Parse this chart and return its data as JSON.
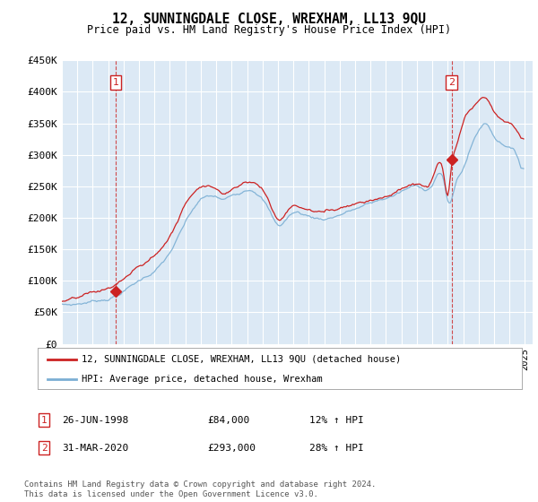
{
  "title": "12, SUNNINGDALE CLOSE, WREXHAM, LL13 9QU",
  "subtitle": "Price paid vs. HM Land Registry's House Price Index (HPI)",
  "plot_bg_color": "#dce9f5",
  "hpi_color": "#7bafd4",
  "price_color": "#cc2222",
  "ylim": [
    0,
    450000
  ],
  "yticks": [
    0,
    50000,
    100000,
    150000,
    200000,
    250000,
    300000,
    350000,
    400000,
    450000
  ],
  "ytick_labels": [
    "£0",
    "£50K",
    "£100K",
    "£150K",
    "£200K",
    "£250K",
    "£300K",
    "£350K",
    "£400K",
    "£450K"
  ],
  "xmin": 1995.0,
  "xmax": 2025.5,
  "sale1": {
    "year": 1998.48,
    "price": 84000,
    "label": "1",
    "date_str": "26-JUN-1998",
    "price_str": "£84,000",
    "pct_str": "12% ↑ HPI"
  },
  "sale2": {
    "year": 2020.25,
    "price": 293000,
    "label": "2",
    "date_str": "31-MAR-2020",
    "price_str": "£293,000",
    "pct_str": "28% ↑ HPI"
  },
  "legend_line1": "12, SUNNINGDALE CLOSE, WREXHAM, LL13 9QU (detached house)",
  "legend_line2": "HPI: Average price, detached house, Wrexham",
  "footer": "Contains HM Land Registry data © Crown copyright and database right 2024.\nThis data is licensed under the Open Government Licence v3.0."
}
